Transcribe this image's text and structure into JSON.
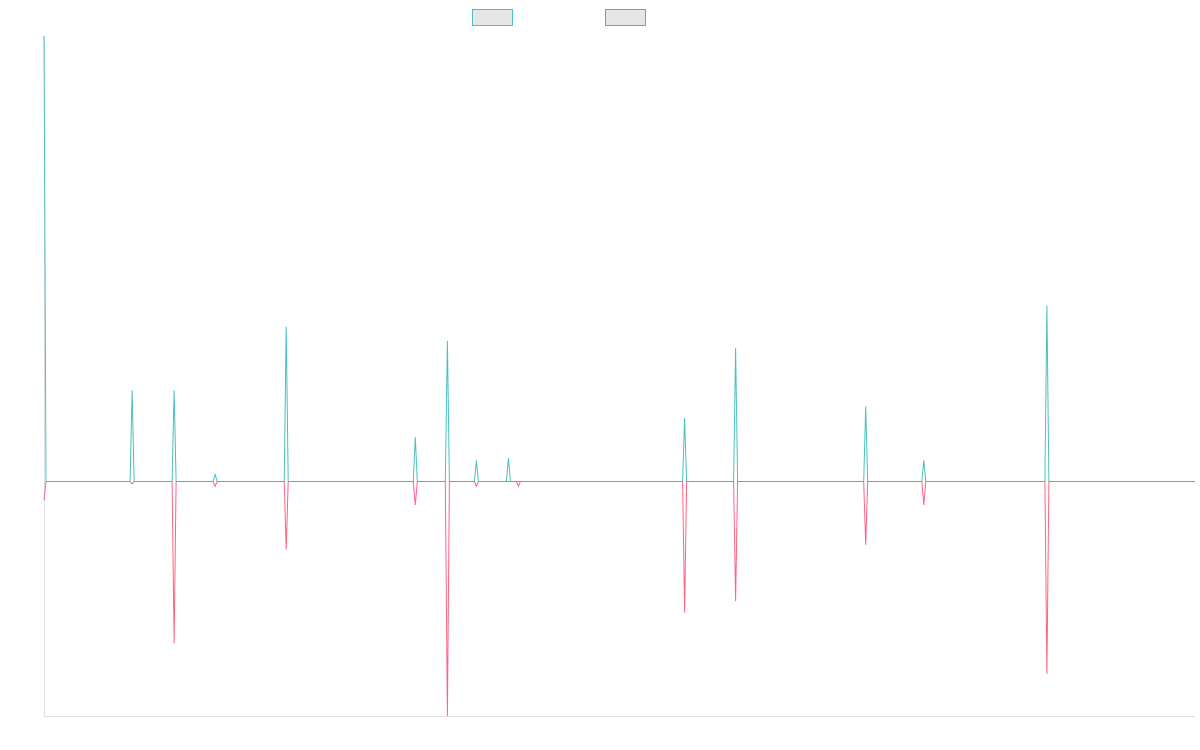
{
  "chart_data": {
    "type": "line",
    "title": "",
    "xlabel": "",
    "ylabel": "",
    "grid": false,
    "legend": "top-center",
    "x_range": [
      0,
      1150
    ],
    "ylim": [
      -1,
      1.9
    ],
    "series": [
      {
        "color": "#4bc0c0",
        "fill": "#e6e6e6",
        "points": [
          [
            0,
            1.9
          ],
          [
            2,
            0
          ],
          [
            86,
            0
          ],
          [
            88,
            0.39
          ],
          [
            90,
            0
          ],
          [
            128,
            0
          ],
          [
            130,
            0.39
          ],
          [
            132,
            0
          ],
          [
            169,
            0
          ],
          [
            171,
            0.03
          ],
          [
            173,
            0
          ],
          [
            240,
            0
          ],
          [
            242,
            0.66
          ],
          [
            244,
            0
          ],
          [
            369,
            0
          ],
          [
            371,
            0.19
          ],
          [
            373,
            0
          ],
          [
            401,
            0
          ],
          [
            403,
            0.6
          ],
          [
            405,
            0
          ],
          [
            430,
            0
          ],
          [
            432,
            0.09
          ],
          [
            434,
            0
          ],
          [
            462,
            0
          ],
          [
            464,
            0.1
          ],
          [
            466,
            0
          ],
          [
            638,
            0
          ],
          [
            640,
            0.27
          ],
          [
            642,
            0
          ],
          [
            689,
            0
          ],
          [
            691,
            0.57
          ],
          [
            693,
            0
          ],
          [
            819,
            0
          ],
          [
            821,
            0.32
          ],
          [
            823,
            0
          ],
          [
            877,
            0
          ],
          [
            879,
            0.09
          ],
          [
            881,
            0
          ],
          [
            1000,
            0
          ],
          [
            1002,
            0.75
          ],
          [
            1004,
            0
          ],
          [
            1150,
            0
          ]
        ]
      },
      {
        "color": "#ff6384",
        "fill": "#e6e6e6",
        "points": [
          [
            0,
            -0.08
          ],
          [
            2,
            0
          ],
          [
            86,
            0
          ],
          [
            88,
            -0.01
          ],
          [
            90,
            0
          ],
          [
            128,
            0
          ],
          [
            130,
            -0.69
          ],
          [
            132,
            0
          ],
          [
            169,
            0
          ],
          [
            171,
            -0.02
          ],
          [
            173,
            0
          ],
          [
            240,
            0
          ],
          [
            242,
            -0.29
          ],
          [
            244,
            0
          ],
          [
            369,
            0
          ],
          [
            371,
            -0.1
          ],
          [
            373,
            0
          ],
          [
            401,
            0
          ],
          [
            403,
            -1
          ],
          [
            405,
            0
          ],
          [
            430,
            0
          ],
          [
            432,
            -0.02
          ],
          [
            434,
            0
          ],
          [
            472,
            0
          ],
          [
            474,
            -0.02
          ],
          [
            476,
            0
          ],
          [
            638,
            0
          ],
          [
            640,
            -0.56
          ],
          [
            642,
            0
          ],
          [
            689,
            0
          ],
          [
            691,
            -0.51
          ],
          [
            693,
            0
          ],
          [
            819,
            0
          ],
          [
            821,
            -0.27
          ],
          [
            823,
            0
          ],
          [
            877,
            0
          ],
          [
            879,
            -0.1
          ],
          [
            881,
            0
          ],
          [
            1000,
            0
          ],
          [
            1002,
            -0.82
          ],
          [
            1004,
            0
          ],
          [
            1150,
            0
          ]
        ]
      }
    ]
  }
}
